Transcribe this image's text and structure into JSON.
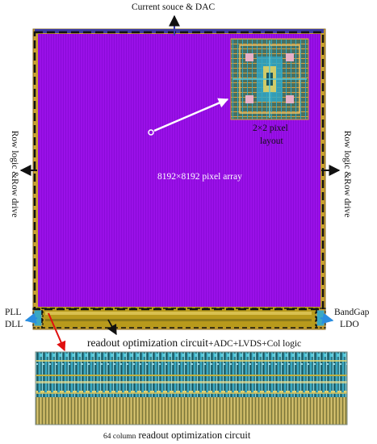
{
  "labels": {
    "top": "Current souce & DAC",
    "array": "8192×8192 pixel array",
    "pixel_layout_line1": "2×2  pixel",
    "pixel_layout_line2": "layout",
    "row_left": "Row logic &Row drive",
    "row_right": "Row logic &Row drive",
    "pll": "PLL",
    "dll": "DLL",
    "bandgap": "BandGap",
    "ldo": "LDO",
    "readout_main": "readout optimization circuit",
    "readout_suffix": "+ADC+LVDS+Col logic",
    "bottom_prefix": "64 column",
    "bottom_main": " readout optimization circuit"
  },
  "colors": {
    "array_fill": "#9a10e8",
    "border_gold": "#c8a030",
    "periphery_gold": "#b89a1c",
    "dash_black": "#111111",
    "arrow_black": "#111111",
    "arrow_blue": "#2a8de0",
    "arrow_red": "#e01010",
    "arrow_white": "#ffffff"
  }
}
